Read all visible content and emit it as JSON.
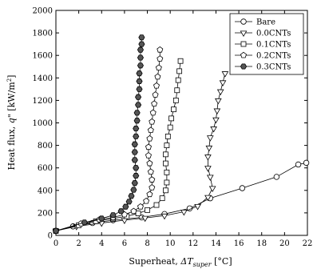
{
  "chart_data": {
    "type": "scatter",
    "xlabel_prefix": "Superheat, ",
    "xlabel_var": "ΔT",
    "xlabel_sub": "super",
    "xlabel_unit": " [°C]",
    "ylabel_prefix": "Heat flux, ",
    "ylabel_var": "q\"",
    "ylabel_unit": " [kW/m",
    "ylabel_sup": "2",
    "ylabel_close": "]",
    "xlim": [
      0,
      22
    ],
    "ylim": [
      0,
      2000
    ],
    "xticks": [
      0,
      2,
      4,
      6,
      8,
      10,
      12,
      14,
      16,
      18,
      20,
      22
    ],
    "yticks": [
      0,
      200,
      400,
      600,
      800,
      1000,
      1200,
      1400,
      1600,
      1800,
      2000
    ],
    "grid": false,
    "legend_position": "top-right",
    "series": [
      {
        "name": "Bare",
        "marker": "circle",
        "fill": "#ffffff",
        "connected": true,
        "points": [
          [
            0.0,
            40
          ],
          [
            1.5,
            80
          ],
          [
            3.2,
            110
          ],
          [
            5.0,
            135
          ],
          [
            7.5,
            160
          ],
          [
            9.5,
            190
          ],
          [
            11.7,
            240
          ],
          [
            13.5,
            330
          ],
          [
            16.3,
            420
          ],
          [
            19.3,
            520
          ],
          [
            21.2,
            630
          ],
          [
            21.9,
            645
          ]
        ]
      },
      {
        "name": "0.0CNTs",
        "marker": "triangle-down",
        "fill": "#ffffff",
        "connected": true,
        "points": [
          [
            0.0,
            40
          ],
          [
            1.8,
            80
          ],
          [
            4.0,
            110
          ],
          [
            6.0,
            135
          ],
          [
            7.8,
            155
          ],
          [
            9.5,
            175
          ],
          [
            11.2,
            210
          ],
          [
            12.4,
            260
          ],
          [
            13.3,
            340
          ],
          [
            13.7,
            420
          ],
          [
            13.5,
            520
          ],
          [
            13.3,
            600
          ],
          [
            13.3,
            700
          ],
          [
            13.4,
            780
          ],
          [
            13.5,
            870
          ],
          [
            13.8,
            950
          ],
          [
            14.0,
            1030
          ],
          [
            14.1,
            1110
          ],
          [
            14.2,
            1200
          ],
          [
            14.4,
            1280
          ],
          [
            14.6,
            1360
          ],
          [
            14.8,
            1440
          ]
        ]
      },
      {
        "name": "0.1CNTs",
        "marker": "square",
        "fill": "#ffffff",
        "connected": true,
        "points": [
          [
            0.0,
            40
          ],
          [
            2.0,
            90
          ],
          [
            3.5,
            125
          ],
          [
            5.0,
            150
          ],
          [
            6.2,
            170
          ],
          [
            7.2,
            195
          ],
          [
            8.0,
            225
          ],
          [
            8.8,
            270
          ],
          [
            9.3,
            330
          ],
          [
            9.6,
            400
          ],
          [
            9.7,
            470
          ],
          [
            9.7,
            560
          ],
          [
            9.6,
            640
          ],
          [
            9.6,
            720
          ],
          [
            9.7,
            800
          ],
          [
            9.8,
            880
          ],
          [
            10.0,
            960
          ],
          [
            10.1,
            1040
          ],
          [
            10.3,
            1120
          ],
          [
            10.5,
            1200
          ],
          [
            10.6,
            1290
          ],
          [
            10.7,
            1380
          ],
          [
            10.8,
            1460
          ],
          [
            10.9,
            1550
          ]
        ]
      },
      {
        "name": "0.2CNTs",
        "marker": "pentagon",
        "fill": "#ffffff",
        "connected": true,
        "points": [
          [
            0.0,
            40
          ],
          [
            2.2,
            105
          ],
          [
            3.8,
            140
          ],
          [
            5.0,
            160
          ],
          [
            6.0,
            185
          ],
          [
            6.8,
            215
          ],
          [
            7.4,
            255
          ],
          [
            7.9,
            305
          ],
          [
            8.2,
            365
          ],
          [
            8.4,
            425
          ],
          [
            8.4,
            495
          ],
          [
            8.3,
            565
          ],
          [
            8.2,
            640
          ],
          [
            8.1,
            710
          ],
          [
            8.1,
            785
          ],
          [
            8.2,
            860
          ],
          [
            8.3,
            935
          ],
          [
            8.4,
            1010
          ],
          [
            8.5,
            1090
          ],
          [
            8.6,
            1170
          ],
          [
            8.7,
            1250
          ],
          [
            8.8,
            1330
          ],
          [
            8.9,
            1410
          ],
          [
            9.0,
            1490
          ],
          [
            9.1,
            1570
          ],
          [
            9.1,
            1650
          ]
        ]
      },
      {
        "name": "0.3CNTs",
        "marker": "hexagon",
        "fill": "#555555",
        "connected": true,
        "points": [
          [
            0.0,
            40
          ],
          [
            2.5,
            115
          ],
          [
            4.0,
            150
          ],
          [
            5.0,
            180
          ],
          [
            5.7,
            215
          ],
          [
            6.1,
            255
          ],
          [
            6.4,
            300
          ],
          [
            6.6,
            350
          ],
          [
            6.8,
            405
          ],
          [
            6.9,
            465
          ],
          [
            7.0,
            530
          ],
          [
            7.0,
            600
          ],
          [
            6.9,
            670
          ],
          [
            6.9,
            740
          ],
          [
            6.9,
            810
          ],
          [
            7.0,
            880
          ],
          [
            7.0,
            950
          ],
          [
            7.1,
            1020
          ],
          [
            7.1,
            1090
          ],
          [
            7.2,
            1160
          ],
          [
            7.2,
            1230
          ],
          [
            7.3,
            1300
          ],
          [
            7.3,
            1370
          ],
          [
            7.3,
            1440
          ],
          [
            7.4,
            1510
          ],
          [
            7.4,
            1580
          ],
          [
            7.4,
            1650
          ],
          [
            7.5,
            1700
          ],
          [
            7.5,
            1760
          ]
        ]
      }
    ]
  }
}
